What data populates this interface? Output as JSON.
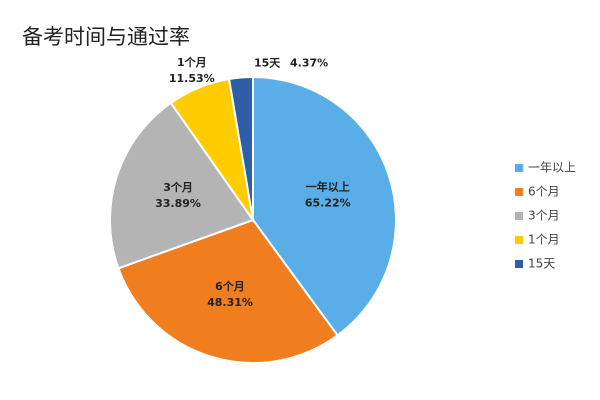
{
  "chart_data": {
    "type": "pie",
    "title": "备考时间与通过率",
    "categories": [
      "一年以上",
      "6个月",
      "3个月",
      "1个月",
      "15天"
    ],
    "values": [
      65.22,
      48.31,
      33.89,
      11.53,
      4.37
    ],
    "value_labels": [
      "65.22%",
      "48.31%",
      "33.89%",
      "11.53%",
      "4.37%"
    ],
    "colors": [
      "#5aaee8",
      "#f07d1e",
      "#b4b4b4",
      "#ffcc00",
      "#2e5ea8"
    ],
    "legend": "right"
  }
}
